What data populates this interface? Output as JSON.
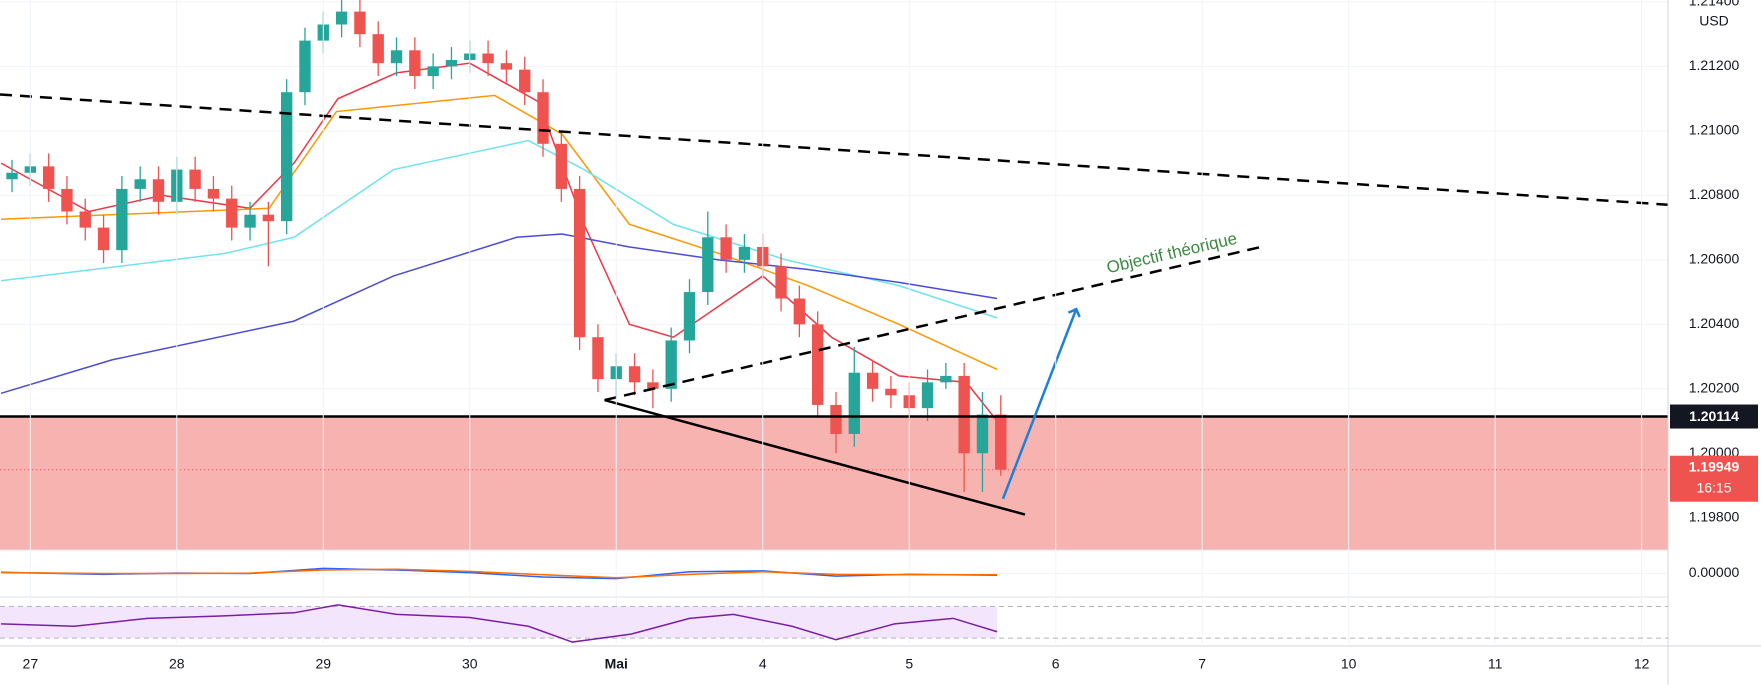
{
  "chart_data": {
    "type": "candlestick",
    "currency": "USD",
    "x": [
      -0.125,
      0,
      0.125,
      0.25,
      0.375,
      0.5,
      0.625,
      0.75,
      0.875,
      1,
      1.125,
      1.25,
      1.375,
      1.5,
      1.625,
      1.75,
      1.875,
      2,
      2.125,
      2.25,
      2.375,
      2.5,
      2.625,
      2.75,
      2.875,
      3,
      3.125,
      3.25,
      3.375,
      3.5,
      3.625,
      3.75,
      3.875,
      4,
      4.125,
      4.25,
      4.375,
      4.5,
      4.625,
      4.75,
      4.875,
      5,
      5.125,
      5.25,
      5.375,
      5.5,
      5.625,
      5.75,
      5.875,
      6,
      6.125,
      6.25,
      6.375,
      6.5,
      6.625
    ],
    "open": [
      1.2085,
      1.2087,
      1.2089,
      1.2082,
      1.2075,
      1.207,
      1.2063,
      1.2082,
      1.2085,
      1.2078,
      1.2088,
      1.2082,
      1.2079,
      1.207,
      1.2074,
      1.2072,
      1.2112,
      1.2128,
      1.2133,
      1.2137,
      1.213,
      1.2121,
      1.2125,
      1.2117,
      1.212,
      1.2122,
      1.2124,
      1.2121,
      1.2119,
      1.2112,
      1.2096,
      1.2082,
      1.2036,
      1.2023,
      1.2027,
      1.2022,
      1.202,
      1.2035,
      1.205,
      1.2067,
      1.206,
      1.2064,
      1.2058,
      1.2048,
      1.204,
      1.2015,
      1.2006,
      1.2025,
      1.202,
      1.2018,
      1.2014,
      1.2022,
      1.2024,
      1.2,
      1.2012
    ],
    "high": [
      1.2091,
      1.2093,
      1.2093,
      1.2086,
      1.2079,
      1.2074,
      1.2086,
      1.2089,
      1.2089,
      1.2092,
      1.2092,
      1.2086,
      1.2083,
      1.2078,
      1.2078,
      1.2116,
      1.2132,
      1.2137,
      1.2141,
      1.2141,
      1.2134,
      1.2129,
      1.2129,
      1.2124,
      1.2126,
      1.2128,
      1.2128,
      1.2125,
      1.2123,
      1.2116,
      1.21,
      1.2086,
      1.204,
      1.2031,
      1.2031,
      1.2026,
      1.2039,
      1.2054,
      1.2075,
      1.2071,
      1.2068,
      1.2068,
      1.2062,
      1.2052,
      1.2044,
      1.2019,
      1.2033,
      1.2029,
      1.2024,
      1.2022,
      1.2026,
      1.2028,
      1.2028,
      1.2019,
      1.2018
    ],
    "low": [
      1.2081,
      1.2083,
      1.2078,
      1.2071,
      1.2066,
      1.2059,
      1.2059,
      1.2078,
      1.2074,
      1.2074,
      1.2078,
      1.2075,
      1.2066,
      1.2066,
      1.2058,
      1.2068,
      1.2108,
      1.2124,
      1.2129,
      1.2126,
      1.2117,
      1.2117,
      1.2113,
      1.2113,
      1.2116,
      1.2118,
      1.2117,
      1.2115,
      1.2108,
      1.2092,
      1.2078,
      1.2032,
      1.2019,
      1.2017,
      1.2018,
      1.2014,
      1.2016,
      1.2031,
      1.2046,
      1.2056,
      1.2056,
      1.2054,
      1.2044,
      1.2036,
      1.2011,
      1.2,
      1.2002,
      1.2016,
      1.2014,
      1.201,
      1.201,
      1.202,
      1.1988,
      1.1988,
      1.1993
    ],
    "close": [
      1.2087,
      1.2089,
      1.2082,
      1.2075,
      1.207,
      1.2063,
      1.2082,
      1.2085,
      1.2078,
      1.2088,
      1.2082,
      1.2079,
      1.207,
      1.2074,
      1.2072,
      1.2112,
      1.2128,
      1.2133,
      1.2137,
      1.213,
      1.2121,
      1.2125,
      1.2117,
      1.212,
      1.2122,
      1.2124,
      1.2121,
      1.2119,
      1.2112,
      1.2096,
      1.2082,
      1.2036,
      1.2023,
      1.2027,
      1.2022,
      1.202,
      1.2035,
      1.205,
      1.2067,
      1.206,
      1.2064,
      1.2058,
      1.2048,
      1.204,
      1.2015,
      1.2006,
      1.2025,
      1.202,
      1.2018,
      1.2014,
      1.2022,
      1.2024,
      1.2,
      1.2012,
      1.19949
    ],
    "up_color": "#26a69a",
    "down_color": "#ef5350",
    "series": [
      {
        "color": "#f23645",
        "x": [
          -0.2,
          0.4,
          0.9,
          1.5,
          1.8,
          2.1,
          2.5,
          3,
          3.47,
          3.78,
          4.09,
          4.39,
          5,
          5.47,
          5.93,
          6.39,
          6.6
        ],
        "values": [
          1.209,
          1.2075,
          1.208,
          1.2076,
          1.209,
          1.211,
          1.2118,
          1.2121,
          1.2109,
          1.2071,
          1.204,
          1.2036,
          1.2055,
          1.2036,
          1.2024,
          1.2022,
          1.201
        ]
      },
      {
        "color": "#ff9800",
        "x": [
          -0.2,
          1.63,
          2.09,
          3.17,
          3.63,
          4.09,
          4.7,
          5.31,
          5.93,
          6.6
        ],
        "values": [
          1.20726,
          1.2076,
          1.2106,
          1.2111,
          1.2099,
          1.2071,
          1.2062,
          1.2052,
          1.204,
          1.2026
        ]
      },
      {
        "color": "#6fe3ee",
        "x": [
          -0.2,
          1.33,
          1.8,
          2.48,
          3.4,
          3.78,
          4.39,
          5.16,
          5.93,
          6.6
        ],
        "values": [
          1.20535,
          1.2062,
          1.2067,
          1.2088,
          1.2097,
          1.2088,
          1.2071,
          1.206,
          1.2052,
          1.2042
        ]
      },
      {
        "color": "#4b4bd8",
        "x": [
          -0.2,
          0.56,
          1.8,
          2.48,
          3.32,
          3.63,
          4.09,
          4.7,
          5.31,
          5.93,
          6.6
        ],
        "values": [
          1.20186,
          1.2029,
          1.2041,
          1.2055,
          1.2067,
          1.2068,
          1.2064,
          1.206,
          1.2057,
          1.2053,
          1.2048
        ]
      }
    ],
    "xlim": [
      -0.207,
      11.18
    ],
    "xticks": [
      {
        "value": 0,
        "label": "27"
      },
      {
        "value": 1,
        "label": "28"
      },
      {
        "value": 2,
        "label": "29"
      },
      {
        "value": 3,
        "label": "30"
      },
      {
        "value": 4,
        "label": "Mai"
      },
      {
        "value": 5,
        "label": "4"
      },
      {
        "value": 6,
        "label": "5"
      },
      {
        "value": 7,
        "label": "6"
      },
      {
        "value": 8,
        "label": "7"
      },
      {
        "value": 9,
        "label": "10"
      },
      {
        "value": 10,
        "label": "11"
      },
      {
        "value": 11,
        "label": "12"
      }
    ],
    "ylim": [
      1.197,
      1.21406
    ],
    "yticks": [
      {
        "value": 1.198,
        "label": "1.19800"
      },
      {
        "value": 1.2,
        "label": "1.20000"
      },
      {
        "value": 1.202,
        "label": "1.20200"
      },
      {
        "value": 1.204,
        "label": "1.20400"
      },
      {
        "value": 1.206,
        "label": "1.20600"
      },
      {
        "value": 1.208,
        "label": "1.20800"
      },
      {
        "value": 1.21,
        "label": "1.21000"
      },
      {
        "value": 1.212,
        "label": "1.21200"
      },
      {
        "value": 1.214,
        "label": "1.21400"
      }
    ],
    "level": {
      "value": 1.20114,
      "label": "1.20114"
    },
    "last_price": {
      "value": 1.19949,
      "label": "1.19949",
      "countdown": "16:15"
    },
    "trendlines": [
      {
        "x": [
          -0.207,
          11.18
        ],
        "y": [
          1.21113,
          1.20771
        ],
        "dashed": true,
        "color": "#000000"
      },
      {
        "x": [
          3.92,
          6.79
        ],
        "y": [
          1.20165,
          1.1981
        ],
        "dashed": false,
        "color": "#000000"
      },
      {
        "x": [
          3.92,
          8.42
        ],
        "y": [
          1.20165,
          1.20642
        ],
        "dashed": true,
        "color": "#000000"
      },
      {
        "x": [
          6.64,
          7.14
        ],
        "y": [
          1.19859,
          1.20447
        ],
        "dashed": false,
        "color": "#1e7fd8",
        "arrow": true
      }
    ],
    "annotation": "Objectif théorique",
    "macd": {
      "ylim": [
        -0.0005,
        0.0005
      ],
      "yticks": [
        {
          "value": 0,
          "label": "0.00000"
        }
      ],
      "x": [
        -0.2,
        0.5,
        1,
        1.5,
        2,
        2.5,
        3,
        3.5,
        4,
        4.5,
        5,
        5.5,
        6,
        6.6
      ],
      "macd": [
        3e-05,
        -2e-05,
        1e-05,
        0,
        0.00012,
        8e-05,
        2e-05,
        -8e-05,
        -0.00012,
        4e-05,
        6e-05,
        -6e-05,
        -2e-05,
        -4e-05
      ],
      "signal": [
        2e-05,
        0,
        0,
        1e-05,
        8e-05,
        0.0001,
        5e-05,
        -3e-05,
        -0.0001,
        -2e-05,
        4e-05,
        -2e-05,
        -3e-05,
        -3e-05
      ],
      "colors": [
        "#2962ff",
        "#ff6d00"
      ]
    },
    "rsi": {
      "ylim": [
        20,
        82
      ],
      "bands": [
        30,
        70
      ],
      "color": "#7b1fa2",
      "band_color": "#f3e5fb",
      "x": [
        -0.2,
        0.3,
        0.8,
        1.3,
        1.8,
        2.1,
        2.5,
        3,
        3.4,
        3.7,
        4.1,
        4.5,
        4.8,
        5.2,
        5.5,
        5.9,
        6.3,
        6.6
      ],
      "values": [
        48,
        45,
        55,
        58,
        62,
        72,
        60,
        56,
        45,
        25,
        35,
        55,
        60,
        45,
        28,
        48,
        55,
        38
      ]
    }
  }
}
